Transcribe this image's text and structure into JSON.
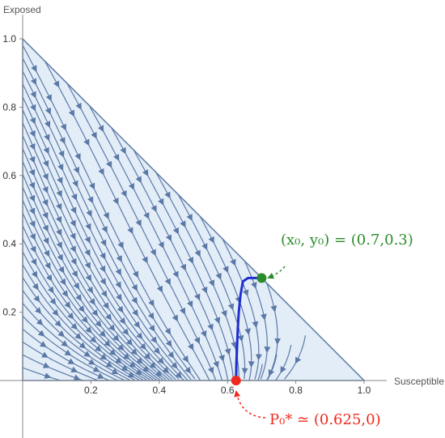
{
  "chart_data": {
    "type": "scatter",
    "subtype": "phase-portrait",
    "title": "",
    "xlabel": "Susceptible",
    "ylabel": "Exposed",
    "xlim": [
      0,
      1
    ],
    "ylim": [
      0,
      1
    ],
    "x_ticks": [
      "0.2",
      "0.4",
      "0.6",
      "0.8",
      "1.0"
    ],
    "y_ticks": [
      "0.2",
      "0.4",
      "0.6",
      "0.8",
      "1.0"
    ],
    "grid": false,
    "region": {
      "vertices": [
        [
          0,
          0
        ],
        [
          1,
          0
        ],
        [
          0,
          1
        ]
      ],
      "fill": "#e3edf8",
      "edge": "#5b79a6"
    },
    "stream_color": "#5b79a6",
    "trajectory": {
      "color": "#1f2fd0",
      "points": [
        [
          0.7,
          0.3
        ],
        [
          0.66,
          0.3
        ],
        [
          0.645,
          0.29
        ],
        [
          0.638,
          0.25
        ],
        [
          0.633,
          0.2
        ],
        [
          0.63,
          0.15
        ],
        [
          0.628,
          0.1
        ],
        [
          0.626,
          0.05
        ],
        [
          0.625,
          0.0
        ]
      ]
    },
    "points": [
      {
        "name": "initial",
        "x": 0.7,
        "y": 0.3,
        "color": "#2a8c2a"
      },
      {
        "name": "equilibrium",
        "x": 0.625,
        "y": 0.0,
        "color": "#f0281e"
      }
    ],
    "annotations": [
      {
        "text": "(x₀, y₀) = (0.7,0.3)",
        "color": "#2a8c2a"
      },
      {
        "text": "P₀* ≃ (0.625,0)",
        "color": "#f0281e"
      }
    ]
  }
}
